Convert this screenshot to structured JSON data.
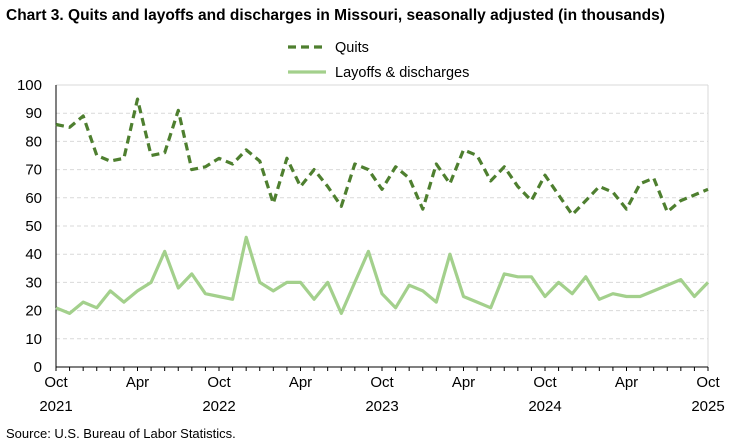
{
  "chart_data": {
    "type": "line",
    "title": "Chart 3. Quits and layoffs and discharges in Missouri, seasonally adjusted (in thousands)",
    "source": "Source: U.S. Bureau of Labor Statistics.",
    "xlabel": "",
    "ylabel": "",
    "ylim": [
      0,
      100
    ],
    "yticks": [
      0,
      10,
      20,
      30,
      40,
      50,
      60,
      70,
      80,
      90,
      100
    ],
    "grid": true,
    "legend_position": "top-center",
    "x_start": "2021-10",
    "x_end": "2025-10",
    "xtick_labels": [
      {
        "month_index": 0,
        "label": "Oct",
        "year": "2021"
      },
      {
        "month_index": 6,
        "label": "Apr",
        "year": ""
      },
      {
        "month_index": 12,
        "label": "Oct",
        "year": "2022"
      },
      {
        "month_index": 18,
        "label": "Apr",
        "year": ""
      },
      {
        "month_index": 24,
        "label": "Oct",
        "year": "2023"
      },
      {
        "month_index": 30,
        "label": "Apr",
        "year": ""
      },
      {
        "month_index": 36,
        "label": "Oct",
        "year": "2024"
      },
      {
        "month_index": 42,
        "label": "Apr",
        "year": ""
      },
      {
        "month_index": 48,
        "label": "Oct",
        "year": "2025"
      }
    ],
    "series": [
      {
        "name": "Quits",
        "color": "#4e7f2f",
        "style": "dashed",
        "values": [
          86,
          85,
          89,
          75,
          73,
          74,
          95,
          75,
          76,
          91,
          70,
          71,
          74,
          72,
          77,
          73,
          58,
          74,
          64,
          70,
          64,
          57,
          72,
          70,
          63,
          71,
          67,
          56,
          72,
          65,
          77,
          75,
          66,
          71,
          64,
          59,
          68,
          61,
          54,
          59,
          64,
          62,
          56,
          65,
          67,
          55,
          59,
          61,
          63
        ]
      },
      {
        "name": "Layoffs & discharges",
        "color": "#a3d08c",
        "style": "solid",
        "values": [
          21,
          19,
          23,
          21,
          27,
          23,
          27,
          30,
          41,
          28,
          33,
          26,
          25,
          24,
          46,
          30,
          27,
          30,
          30,
          24,
          30,
          19,
          30,
          41,
          26,
          21,
          29,
          27,
          23,
          40,
          25,
          23,
          21,
          33,
          32,
          32,
          25,
          30,
          26,
          32,
          24,
          26,
          25,
          25,
          27,
          29,
          31,
          25,
          30
        ]
      }
    ]
  }
}
